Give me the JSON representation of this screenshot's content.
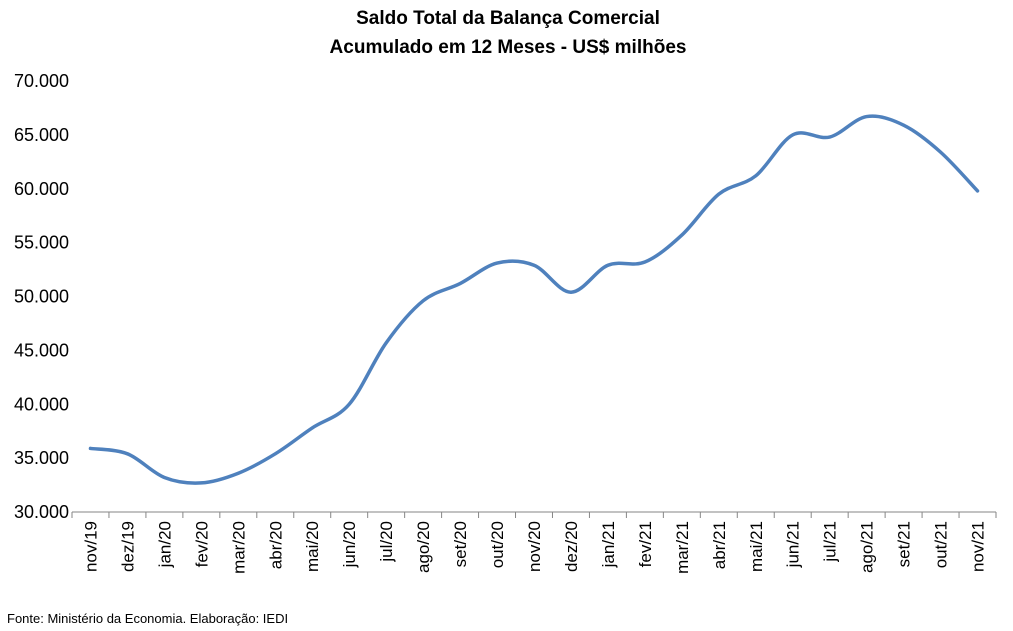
{
  "chart_data": {
    "type": "line",
    "title": "Saldo Total da Balança Comercial",
    "subtitle": "Acumulado em 12 Meses - US$ milhões",
    "xlabel": "",
    "ylabel": "",
    "ylim": [
      30000,
      70000
    ],
    "y_ticks": [
      "30.000",
      "35.000",
      "40.000",
      "45.000",
      "50.000",
      "55.000",
      "60.000",
      "65.000",
      "70.000"
    ],
    "y_tick_values": [
      30000,
      35000,
      40000,
      45000,
      50000,
      55000,
      60000,
      65000,
      70000
    ],
    "grid": false,
    "legend": "none",
    "categories": [
      "nov/19",
      "dez/19",
      "jan/20",
      "fev/20",
      "mar/20",
      "abr/20",
      "mai/20",
      "jun/20",
      "jul/20",
      "ago/20",
      "set/20",
      "out/20",
      "nov/20",
      "dez/20",
      "jan/21",
      "fev/21",
      "mar/21",
      "abr/21",
      "mai/21",
      "jun/21",
      "jul/21",
      "ago/21",
      "set/21",
      "out/21",
      "nov/21"
    ],
    "series": [
      {
        "color": "#4f81bd",
        "values": [
          35900,
          35400,
          33200,
          32700,
          33600,
          35400,
          37800,
          40000,
          45700,
          49600,
          51200,
          53100,
          52900,
          50400,
          52900,
          53200,
          55700,
          59500,
          61200,
          65000,
          64800,
          66700,
          65900,
          63400,
          59800
        ]
      }
    ]
  },
  "footer": {
    "source": "Fonte: Ministério da Economia. Elaboração: IEDI"
  }
}
